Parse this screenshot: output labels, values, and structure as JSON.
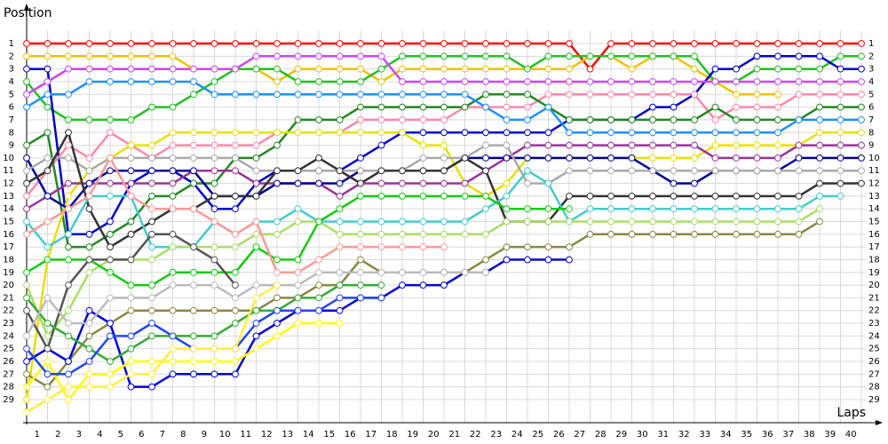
{
  "chart_data": {
    "type": "line",
    "y_label": "Position",
    "x_label": "Laps",
    "x": [
      0,
      1,
      2,
      3,
      4,
      5,
      6,
      7,
      8,
      9,
      10,
      11,
      12,
      13,
      14,
      15,
      16,
      17,
      18,
      19,
      20,
      21,
      22,
      23,
      24,
      25,
      26,
      27,
      28,
      29,
      30,
      31,
      32,
      33,
      34,
      35,
      36,
      37,
      38,
      39,
      40
    ],
    "xlim": [
      0,
      40
    ],
    "xticks": [
      1,
      2,
      3,
      4,
      5,
      6,
      7,
      8,
      9,
      10,
      11,
      12,
      13,
      14,
      15,
      16,
      17,
      18,
      19,
      20,
      21,
      22,
      23,
      24,
      25,
      26,
      27,
      28,
      29,
      30,
      31,
      32,
      33,
      34,
      35,
      36,
      37,
      38,
      39,
      40
    ],
    "ylim": [
      0,
      31
    ],
    "y_inverted": true,
    "yticks": [
      1,
      2,
      3,
      4,
      5,
      6,
      7,
      8,
      9,
      10,
      11,
      12,
      13,
      14,
      15,
      16,
      17,
      18,
      19,
      20,
      21,
      22,
      23,
      24,
      25,
      26,
      27,
      28,
      29
    ],
    "grid": true,
    "series": [
      {
        "color": "#ff0000",
        "values": [
          1,
          1,
          1,
          1,
          1,
          1,
          1,
          1,
          1,
          1,
          1,
          1,
          1,
          1,
          1,
          1,
          1,
          1,
          1,
          1,
          1,
          1,
          1,
          1,
          1,
          1,
          1,
          3,
          1,
          1,
          1,
          1,
          1,
          1,
          1,
          1,
          1,
          1,
          1,
          1,
          1
        ]
      },
      {
        "color": "#f0c000",
        "values": [
          2,
          2,
          2,
          2,
          2,
          2,
          2,
          2,
          3,
          3,
          3,
          3,
          4,
          3,
          3,
          3,
          3,
          4,
          3,
          3,
          3,
          3,
          3,
          3,
          3,
          3,
          3,
          2,
          2,
          3,
          2,
          2,
          3,
          4,
          5,
          5,
          5,
          null,
          null,
          null,
          null
        ]
      },
      {
        "color": "#22c022",
        "values": [
          4,
          6,
          7,
          7,
          7,
          7,
          6,
          6,
          5,
          4,
          3,
          3,
          3,
          4,
          4,
          4,
          4,
          3,
          2,
          2,
          2,
          2,
          2,
          2,
          3,
          2,
          2,
          2,
          2,
          2,
          2,
          2,
          2,
          4,
          4,
          3,
          3,
          3,
          3,
          2,
          2
        ]
      },
      {
        "color": "#0000cc",
        "values": [
          3,
          3,
          16,
          16,
          15,
          12,
          11,
          11,
          12,
          14,
          14,
          12,
          11,
          11,
          11,
          11,
          10,
          9,
          8,
          8,
          8,
          8,
          8,
          8,
          8,
          8,
          7,
          7,
          7,
          7,
          6,
          6,
          5,
          3,
          3,
          2,
          2,
          2,
          2,
          3,
          3
        ]
      },
      {
        "color": "#cc44ff",
        "values": [
          5,
          4,
          3,
          3,
          3,
          3,
          3,
          3,
          3,
          3,
          3,
          2,
          2,
          2,
          2,
          2,
          2,
          2,
          4,
          4,
          4,
          4,
          4,
          4,
          4,
          4,
          4,
          4,
          4,
          4,
          4,
          4,
          4,
          4,
          4,
          4,
          4,
          4,
          4,
          4,
          4
        ]
      },
      {
        "color": "#ff88aa",
        "values": [
          13,
          11,
          9,
          10,
          8,
          9,
          10,
          9,
          9,
          9,
          9,
          9,
          8,
          8,
          8,
          8,
          7,
          7,
          7,
          7,
          7,
          6,
          6,
          6,
          6,
          5,
          5,
          5,
          5,
          5,
          5,
          5,
          5,
          7,
          6,
          6,
          6,
          5,
          5,
          5,
          5
        ]
      },
      {
        "color": "#228822",
        "values": [
          9,
          8,
          17,
          17,
          16,
          15,
          13,
          13,
          12,
          12,
          10,
          10,
          9,
          7,
          7,
          7,
          6,
          6,
          6,
          6,
          6,
          6,
          5,
          5,
          5,
          6,
          7,
          7,
          7,
          7,
          7,
          7,
          7,
          6,
          7,
          7,
          7,
          7,
          6,
          6,
          6
        ]
      },
      {
        "color": "#1e90ff",
        "values": [
          6,
          5,
          5,
          4,
          4,
          4,
          4,
          4,
          4,
          5,
          5,
          5,
          5,
          5,
          5,
          5,
          5,
          5,
          5,
          5,
          5,
          5,
          6,
          7,
          7,
          6,
          8,
          8,
          8,
          8,
          8,
          8,
          8,
          8,
          8,
          8,
          8,
          7,
          7,
          7,
          7
        ]
      },
      {
        "color": "#e8e000",
        "values": [
          29,
          18,
          13,
          11,
          10,
          9,
          9,
          8,
          8,
          8,
          8,
          8,
          8,
          8,
          8,
          8,
          8,
          8,
          8,
          9,
          9,
          12,
          13,
          12,
          10,
          10,
          10,
          10,
          10,
          10,
          10,
          10,
          10,
          9,
          9,
          9,
          9,
          9,
          8,
          8,
          8
        ]
      },
      {
        "color": "#993399",
        "values": [
          14,
          13,
          12,
          12,
          12,
          12,
          12,
          12,
          11,
          11,
          11,
          12,
          12,
          12,
          12,
          13,
          12,
          12,
          12,
          12,
          12,
          12,
          11,
          10,
          9,
          9,
          9,
          9,
          9,
          9,
          9,
          9,
          9,
          10,
          10,
          10,
          10,
          9,
          9,
          9,
          9
        ]
      },
      {
        "color": "#000099",
        "values": [
          10,
          13,
          14,
          12,
          11,
          11,
          11,
          11,
          11,
          13,
          13,
          13,
          12,
          12,
          12,
          12,
          11,
          11,
          11,
          11,
          11,
          10,
          10,
          10,
          10,
          10,
          10,
          10,
          10,
          10,
          11,
          12,
          12,
          11,
          11,
          11,
          11,
          10,
          10,
          10,
          10
        ]
      },
      {
        "color": "#aaaaaa",
        "values": [
          11,
          10,
          10,
          11,
          10,
          10,
          10,
          10,
          10,
          10,
          10,
          11,
          11,
          11,
          11,
          11,
          11,
          11,
          11,
          10,
          10,
          10,
          9,
          9,
          12,
          12,
          11,
          11,
          11,
          11,
          11,
          11,
          11,
          11,
          11,
          11,
          11,
          11,
          11,
          11,
          11
        ]
      },
      {
        "color": "#333333",
        "values": [
          12,
          11,
          8,
          14,
          17,
          16,
          15,
          14,
          14,
          13,
          13,
          13,
          11,
          11,
          10,
          11,
          12,
          11,
          11,
          11,
          11,
          10,
          11,
          15,
          15,
          15,
          13,
          13,
          13,
          13,
          13,
          13,
          13,
          13,
          13,
          13,
          13,
          13,
          12,
          12,
          12
        ]
      },
      {
        "color": "#44cccc",
        "values": [
          15,
          17,
          16,
          13,
          13,
          13,
          17,
          17,
          17,
          15,
          16,
          15,
          15,
          14,
          15,
          15,
          15,
          15,
          15,
          15,
          15,
          15,
          14,
          13,
          11,
          12,
          15,
          14,
          14,
          14,
          14,
          14,
          14,
          14,
          14,
          14,
          14,
          14,
          13,
          13,
          null
        ]
      },
      {
        "color": "#aadd66",
        "values": [
          20,
          24,
          22,
          19,
          18,
          18,
          18,
          17,
          17,
          17,
          17,
          16,
          16,
          15,
          15,
          16,
          16,
          16,
          16,
          16,
          16,
          16,
          16,
          15,
          15,
          15,
          15,
          15,
          15,
          15,
          15,
          15,
          15,
          15,
          15,
          15,
          15,
          15,
          14,
          null,
          null
        ]
      },
      {
        "color": "#888844",
        "values": [
          27,
          28,
          26,
          24,
          23,
          22,
          22,
          22,
          22,
          22,
          22,
          22,
          21,
          21,
          20,
          20,
          18,
          19,
          19,
          19,
          19,
          19,
          18,
          17,
          17,
          17,
          17,
          16,
          16,
          16,
          16,
          16,
          16,
          16,
          16,
          16,
          16,
          16,
          15,
          null,
          null
        ]
      },
      {
        "color": "#11cc11",
        "values": [
          19,
          18,
          18,
          18,
          19,
          20,
          20,
          19,
          19,
          19,
          19,
          17,
          18,
          18,
          15,
          14,
          13,
          13,
          13,
          13,
          13,
          13,
          13,
          14,
          14,
          14,
          14,
          null,
          null,
          null,
          null,
          null,
          null,
          null,
          null,
          null,
          null,
          null,
          null,
          null,
          null
        ]
      },
      {
        "color": "#0000dd",
        "values": [
          26,
          25,
          26,
          22,
          23,
          28,
          28,
          27,
          27,
          27,
          27,
          24,
          23,
          22,
          22,
          22,
          21,
          21,
          20,
          20,
          20,
          19,
          19,
          18,
          18,
          18,
          18,
          null,
          null,
          null,
          null,
          null,
          null,
          null,
          null,
          null,
          null,
          null,
          null,
          null,
          null
        ]
      },
      {
        "color": "#ffff00",
        "values": [
          28,
          26,
          29,
          27,
          27,
          26,
          26,
          26,
          26,
          26,
          26,
          25,
          24,
          23,
          23,
          23,
          null,
          null,
          null,
          null,
          null,
          null,
          null,
          null,
          null,
          null,
          null,
          null,
          null,
          null,
          null,
          null,
          null,
          null,
          null,
          null,
          null,
          null,
          null,
          null,
          null
        ]
      },
      {
        "color": "#ff9999",
        "values": [
          16,
          15,
          14,
          13,
          10,
          13,
          14,
          14,
          14,
          15,
          16,
          15,
          19,
          19,
          18,
          17,
          17,
          17,
          17,
          17,
          17,
          null,
          null,
          null,
          null,
          null,
          null,
          null,
          null,
          null,
          null,
          null,
          null,
          null,
          null,
          null,
          null,
          null,
          null,
          null,
          null
        ]
      },
      {
        "color": "#555555",
        "values": [
          22,
          25,
          20,
          18,
          18,
          18,
          16,
          16,
          17,
          18,
          20,
          null,
          null,
          null,
          null,
          null,
          null,
          null,
          null,
          null,
          null,
          null,
          null,
          null,
          null,
          null,
          null,
          null,
          null,
          null,
          null,
          null,
          null,
          null,
          null,
          null,
          null,
          null,
          null,
          null,
          null
        ]
      },
      {
        "color": "#33aa33",
        "values": [
          21,
          23,
          24,
          25,
          26,
          25,
          24,
          24,
          24,
          24,
          23,
          22,
          22,
          21,
          21,
          20,
          20,
          20,
          null,
          null,
          null,
          null,
          null,
          null,
          null,
          null,
          null,
          null,
          null,
          null,
          null,
          null,
          null,
          null,
          null,
          null,
          null,
          null,
          null,
          null,
          null
        ]
      },
      {
        "color": "#bbbbbb",
        "values": [
          24,
          21,
          23,
          23,
          21,
          21,
          21,
          20,
          20,
          20,
          21,
          20,
          20,
          20,
          19,
          19,
          19,
          19,
          19,
          19,
          19,
          19,
          19,
          null,
          null,
          null,
          null,
          null,
          null,
          null,
          null,
          null,
          null,
          null,
          null,
          null,
          null,
          null,
          null,
          null,
          null
        ]
      },
      {
        "color": "#2244ff",
        "values": [
          25,
          27,
          27,
          26,
          24,
          24,
          23,
          24,
          25,
          25,
          25,
          23,
          22,
          22,
          22,
          21,
          21,
          21,
          null,
          null,
          null,
          null,
          null,
          null,
          null,
          null,
          null,
          null,
          null,
          null,
          null,
          null,
          null,
          null,
          null,
          null,
          null,
          null,
          null,
          null,
          null
        ]
      },
      {
        "color": "#ffee44",
        "values": [
          30,
          29,
          28,
          28,
          28,
          27,
          27,
          25,
          25,
          25,
          25,
          21,
          20,
          null,
          null,
          null,
          null,
          null,
          null,
          null,
          null,
          null,
          null,
          null,
          null,
          null,
          null,
          null,
          null,
          null,
          null,
          null,
          null,
          null,
          null,
          null,
          null,
          null,
          null,
          null,
          null
        ]
      }
    ]
  }
}
